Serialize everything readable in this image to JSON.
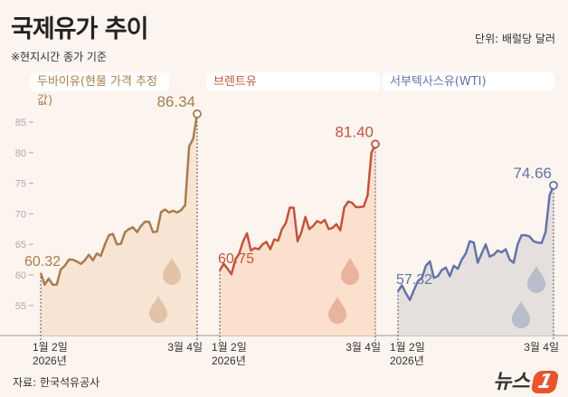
{
  "header": {
    "title": "국제유가 추이",
    "subtitle": "※현지시간 종가 기준",
    "unit": "단위: 배럴당 달러"
  },
  "footer": {
    "source": "자료: 한국석유공사",
    "logo": "뉴스1"
  },
  "chart_data": [
    {
      "type": "area",
      "title": "두바이유(현물 가격 추정값)",
      "color": "#a87d4e",
      "fill": "#f7e4d2",
      "drop_color": "#e2c3a5",
      "x_start_label": [
        "1월 2일",
        "2026년"
      ],
      "x_end_label": "3월 4일",
      "ylim": [
        50,
        88
      ],
      "yticks": [
        55,
        60,
        65,
        70,
        75,
        80,
        85
      ],
      "start_value": "60.32",
      "end_value": "86.34",
      "values": [
        60.32,
        58.4,
        59.4,
        58.4,
        58.4,
        60.9,
        61.5,
        62.5,
        62.5,
        62.2,
        61.8,
        62.4,
        63.3,
        62.4,
        63.5,
        63.1,
        65,
        66.5,
        66.7,
        65,
        65.1,
        67,
        67.5,
        67.8,
        67,
        68,
        68.7,
        68.7,
        67,
        67.1,
        70.3,
        70.7,
        70.2,
        70.5,
        70.2,
        70.6,
        71.4,
        81,
        82.3,
        86.34
      ]
    },
    {
      "type": "area",
      "title": "브렌트유",
      "color": "#c0553f",
      "fill": "#fbe0cd",
      "drop_color": "#eab39e",
      "x_start_label": [
        "1월 2일",
        "2026년"
      ],
      "x_end_label": "3월 4일",
      "ylim": [
        50,
        88
      ],
      "start_value": "60.75",
      "end_value": "81.40",
      "values": [
        60.75,
        61.8,
        61,
        60.1,
        62.5,
        63.5,
        65.5,
        66.8,
        64,
        64.4,
        64.2,
        65,
        65.4,
        64.2,
        65.8,
        65.6,
        67.5,
        68.5,
        71,
        71,
        65.5,
        67,
        69.5,
        67.5,
        68,
        68.8,
        68.5,
        69,
        67.5,
        67.7,
        68.3,
        67.3,
        71,
        72,
        71.8,
        71.1,
        71.1,
        71.2,
        73,
        80,
        81.4
      ]
    },
    {
      "type": "area",
      "title": "서부텍사스유(WTI)",
      "color": "#6474a8",
      "fill": "#e5e0dd",
      "drop_color": "#b8bccb",
      "x_start_label": [
        "1월 2일",
        "2026년"
      ],
      "x_end_label": "3월 4일",
      "ylim": [
        50,
        88
      ],
      "start_value": "57.32",
      "end_value": "74.66",
      "values": [
        57.32,
        58.3,
        57,
        55.9,
        57.5,
        59,
        59.5,
        61.5,
        62.2,
        59.5,
        59.8,
        60.8,
        61.2,
        59.8,
        61.5,
        61,
        62.5,
        63.5,
        65.5,
        65.3,
        62,
        63.5,
        65,
        63,
        63.3,
        64,
        63.7,
        64.2,
        62.5,
        62,
        65,
        66.5,
        66.5,
        66.3,
        65.5,
        65.3,
        65.2,
        67,
        73,
        74.66
      ]
    }
  ]
}
